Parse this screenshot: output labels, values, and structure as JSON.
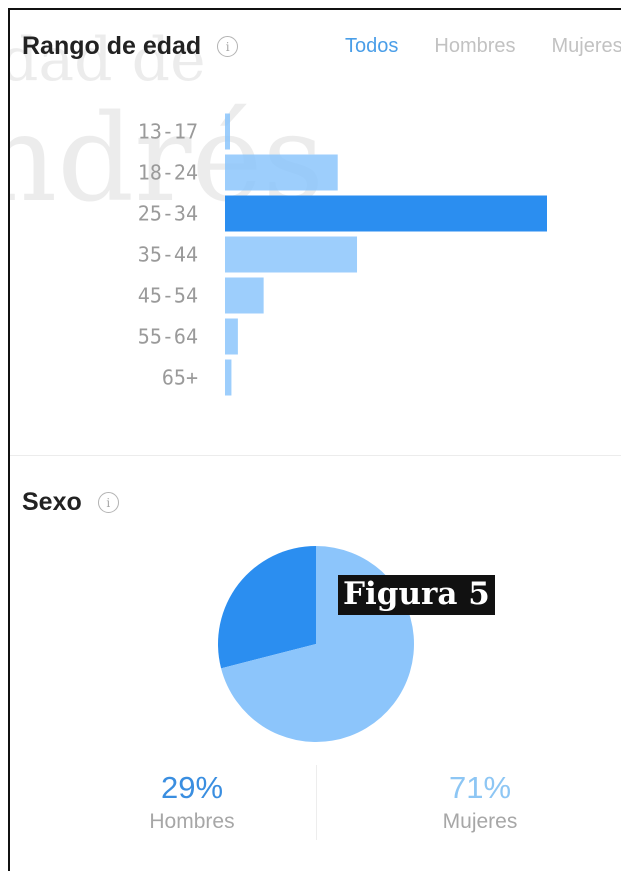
{
  "watermark": {
    "text_line1": "dad de",
    "text_line2": "ndrés"
  },
  "age_section": {
    "title": "Rango de edad",
    "tabs": [
      {
        "label": "Todos",
        "active": true
      },
      {
        "label": "Hombres",
        "active": false
      },
      {
        "label": "Mujeres",
        "active": false
      }
    ]
  },
  "gender_section": {
    "title": "Sexo"
  },
  "figure_label": "Figura 5",
  "stats": {
    "men": {
      "pct": "29%",
      "label": "Hombres"
    },
    "women": {
      "pct": "71%",
      "label": "Mujeres"
    }
  },
  "colors": {
    "primary": "#2b8ef0",
    "light": "#8cc5fb",
    "men_text": "#3a8ee0",
    "women_text": "#8dc6f4"
  },
  "chart_data": [
    {
      "type": "bar",
      "orientation": "horizontal",
      "categories": [
        "13-17",
        "18-24",
        "25-34",
        "35-44",
        "45-54",
        "55-64",
        "65+"
      ],
      "values": [
        1,
        35,
        100,
        41,
        12,
        4,
        2
      ],
      "highlight": "25-34"
    },
    {
      "type": "pie",
      "labels": [
        "Hombres",
        "Mujeres"
      ],
      "values": [
        29,
        71
      ]
    }
  ]
}
